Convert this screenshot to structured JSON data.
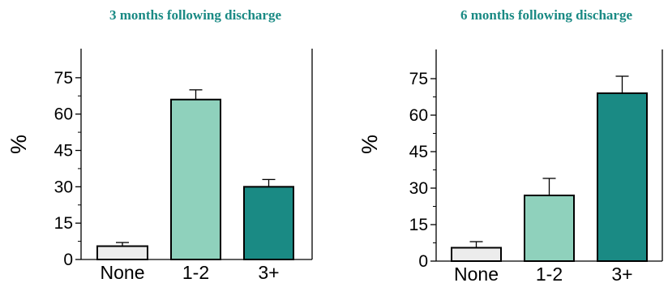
{
  "chart_data": [
    {
      "type": "bar",
      "title": "3 months following discharge",
      "ylabel": "%",
      "xlabel": "",
      "categories": [
        "None",
        "1-2",
        "3+"
      ],
      "values": [
        5.5,
        66,
        30
      ],
      "error_upper": [
        7,
        70,
        33
      ],
      "ylim": [
        0,
        87
      ],
      "yticks": [
        "0",
        "15",
        "30",
        "45",
        "60",
        "75"
      ],
      "bar_colors": [
        "#ececec",
        "#8fd1bc",
        "#1a8a84"
      ],
      "grid": false,
      "legend": "none"
    },
    {
      "type": "bar",
      "title": "6 months following discharge",
      "ylabel": "%",
      "xlabel": "",
      "categories": [
        "None",
        "1-2",
        "3+"
      ],
      "values": [
        5.5,
        27,
        69
      ],
      "error_upper": [
        8,
        34,
        76
      ],
      "ylim": [
        0,
        87
      ],
      "yticks": [
        "0",
        "15",
        "30",
        "45",
        "60",
        "75"
      ],
      "bar_colors": [
        "#ececec",
        "#8fd1bc",
        "#1a8a84"
      ],
      "grid": false,
      "legend": "none"
    }
  ],
  "colors": {
    "title": "#1a8a84",
    "axis": "#000000",
    "bar_stroke": "#000000"
  }
}
